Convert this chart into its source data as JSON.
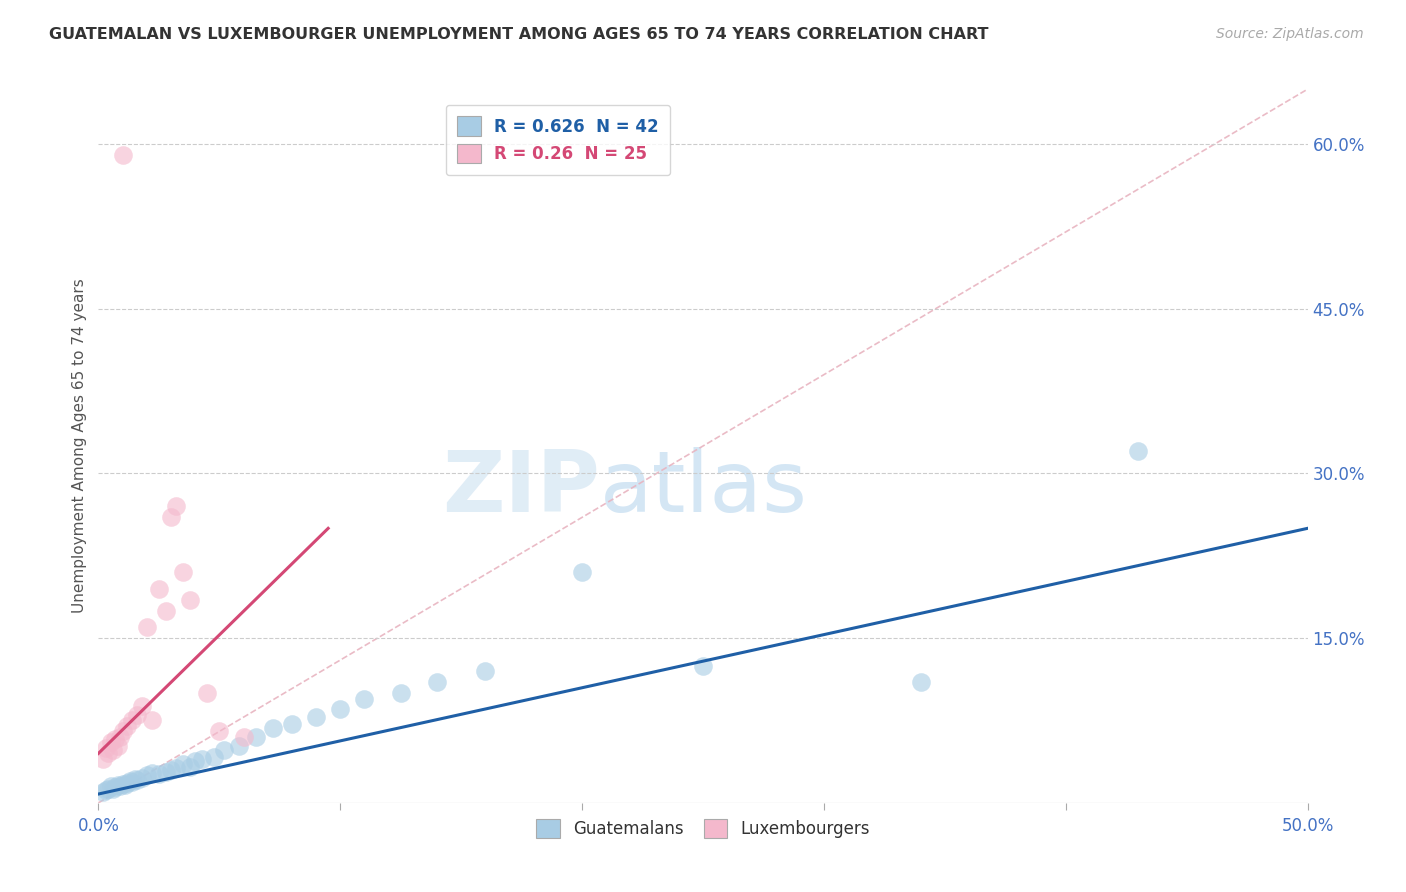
{
  "title": "GUATEMALAN VS LUXEMBOURGER UNEMPLOYMENT AMONG AGES 65 TO 74 YEARS CORRELATION CHART",
  "source": "Source: ZipAtlas.com",
  "ylabel": "Unemployment Among Ages 65 to 74 years",
  "xlim": [
    0.0,
    0.5
  ],
  "ylim": [
    0.0,
    0.65
  ],
  "yticks_right": [
    0.15,
    0.3,
    0.45,
    0.6
  ],
  "ytick_right_labels": [
    "15.0%",
    "30.0%",
    "45.0%",
    "60.0%"
  ],
  "r_blue": 0.626,
  "n_blue": 42,
  "r_pink": 0.26,
  "n_pink": 25,
  "blue_color": "#a8cce4",
  "pink_color": "#f4b8cc",
  "blue_line_color": "#1f5fa6",
  "pink_line_color": "#d44875",
  "diag_color": "#e8b4c0",
  "legend_blue_label": "Guatemalans",
  "legend_pink_label": "Luxembourgers",
  "watermark_zip": "ZIP",
  "watermark_atlas": "atlas",
  "blue_scatter_x": [
    0.002,
    0.003,
    0.004,
    0.005,
    0.006,
    0.007,
    0.008,
    0.009,
    0.01,
    0.011,
    0.012,
    0.013,
    0.014,
    0.015,
    0.016,
    0.018,
    0.02,
    0.022,
    0.025,
    0.028,
    0.03,
    0.032,
    0.035,
    0.038,
    0.04,
    0.043,
    0.048,
    0.052,
    0.058,
    0.065,
    0.072,
    0.08,
    0.09,
    0.1,
    0.11,
    0.125,
    0.14,
    0.16,
    0.2,
    0.25,
    0.34,
    0.43
  ],
  "blue_scatter_y": [
    0.01,
    0.012,
    0.013,
    0.015,
    0.013,
    0.014,
    0.016,
    0.015,
    0.017,
    0.016,
    0.018,
    0.02,
    0.019,
    0.022,
    0.021,
    0.023,
    0.025,
    0.027,
    0.026,
    0.028,
    0.03,
    0.032,
    0.035,
    0.033,
    0.038,
    0.04,
    0.042,
    0.048,
    0.052,
    0.06,
    0.068,
    0.072,
    0.078,
    0.085,
    0.095,
    0.1,
    0.11,
    0.12,
    0.21,
    0.125,
    0.11,
    0.32
  ],
  "pink_scatter_x": [
    0.002,
    0.003,
    0.004,
    0.005,
    0.006,
    0.007,
    0.008,
    0.009,
    0.01,
    0.012,
    0.014,
    0.016,
    0.018,
    0.02,
    0.022,
    0.025,
    0.028,
    0.03,
    0.032,
    0.035,
    0.038,
    0.045,
    0.05,
    0.06,
    0.01
  ],
  "pink_scatter_y": [
    0.04,
    0.05,
    0.045,
    0.055,
    0.048,
    0.058,
    0.052,
    0.06,
    0.065,
    0.07,
    0.075,
    0.08,
    0.088,
    0.16,
    0.075,
    0.195,
    0.175,
    0.26,
    0.27,
    0.21,
    0.185,
    0.1,
    0.065,
    0.06,
    0.59
  ],
  "blue_trend_x": [
    0.0,
    0.5
  ],
  "blue_trend_y": [
    0.008,
    0.25
  ],
  "pink_trend_x": [
    0.0,
    0.095
  ],
  "pink_trend_y": [
    0.045,
    0.25
  ]
}
